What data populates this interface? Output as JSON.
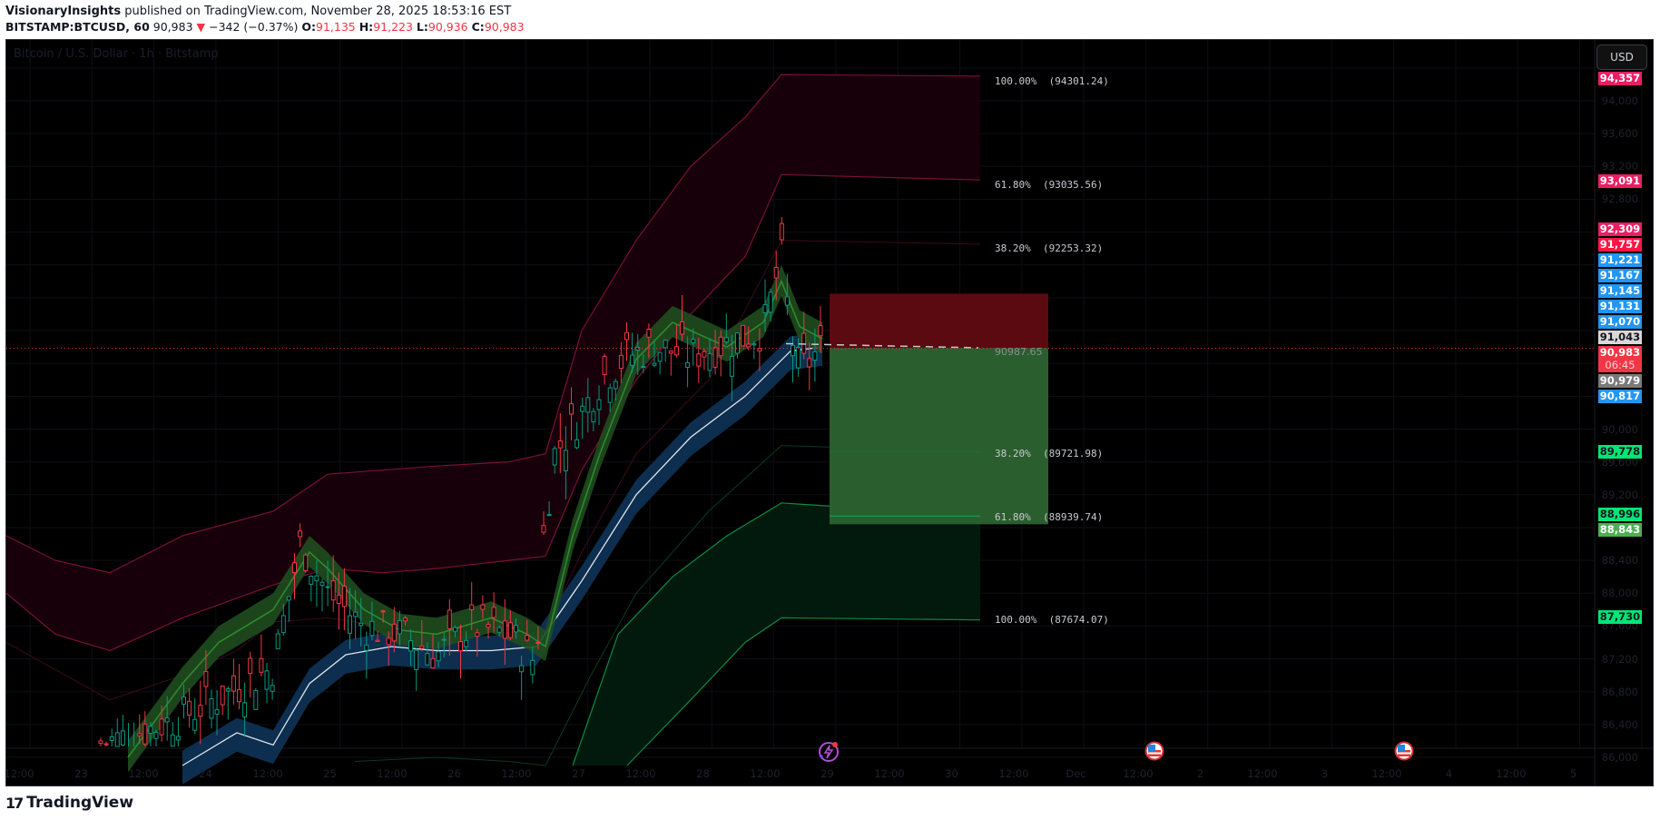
{
  "header": {
    "author": "VisionaryInsights",
    "published_text": "published on TradingView.com, November 28, 2025 18:53:16 EST",
    "symbol": "BITSTAMP:BTCUSD, 60",
    "last_price": "90,983",
    "change_arrow": "▼",
    "change": "−342 (−0.37%)",
    "o_label": "O:",
    "o_value": "91,135",
    "h_label": "H:",
    "h_value": "91,223",
    "l_label": "L:",
    "l_value": "90,936",
    "c_label": "C:",
    "c_value": "90,983"
  },
  "chart": {
    "watermark": "Bitcoin / U.S. Dollar · 1h · Bitstamp",
    "currency_button": "USD",
    "entry_price_label": "90987.65",
    "price_ticks": [
      "94,000",
      "93,600",
      "93,200",
      "92,800",
      "90,000",
      "89,600",
      "89,200",
      "88,400",
      "88,000",
      "87,600",
      "87,200",
      "86,800",
      "86,400",
      "86,000"
    ],
    "price_labels": [
      {
        "value": "94,357",
        "color": "#e91e63",
        "text_color": "#ffffff"
      },
      {
        "value": "93,091",
        "color": "#e91e63",
        "text_color": "#ffffff"
      },
      {
        "value": "92,309",
        "color": "#e91e63",
        "text_color": "#ffffff"
      },
      {
        "value": "91,757",
        "color": "#ff1744",
        "text_color": "#ffffff"
      },
      {
        "value": "91,221",
        "color": "#2196f3",
        "text_color": "#ffffff"
      },
      {
        "value": "91,167",
        "color": "#2196f3",
        "text_color": "#ffffff"
      },
      {
        "value": "91,145",
        "color": "#2196f3",
        "text_color": "#ffffff"
      },
      {
        "value": "91,131",
        "color": "#2196f3",
        "text_color": "#ffffff"
      },
      {
        "value": "91,070",
        "color": "#2196f3",
        "text_color": "#ffffff"
      },
      {
        "value": "91,043",
        "color": "#d8d8d8",
        "text_color": "#131722"
      },
      {
        "value": "90,983",
        "color": "#f23645",
        "text_color": "#ffffff"
      },
      {
        "value": "06:45",
        "color": "#f23645",
        "text_color": "#ffd0d4"
      },
      {
        "value": "90,979",
        "color": "#7a7a7a",
        "text_color": "#ffffff"
      },
      {
        "value": "90,817",
        "color": "#2196f3",
        "text_color": "#ffffff"
      },
      {
        "value": "89,778",
        "color": "#00e676",
        "text_color": "#131722"
      },
      {
        "value": "88,996",
        "color": "#00e676",
        "text_color": "#131722"
      },
      {
        "value": "88,843",
        "color": "#4caf50",
        "text_color": "#ffffff"
      },
      {
        "value": "87,730",
        "color": "#00e676",
        "text_color": "#131722"
      }
    ],
    "time_ticks": [
      "12:00",
      "23",
      "12:00",
      "24",
      "12:00",
      "25",
      "12:00",
      "26",
      "12:00",
      "27",
      "12:00",
      "28",
      "12:00",
      "29",
      "12:00",
      "30",
      "12:00",
      "Dec",
      "12:00",
      "2",
      "12:00",
      "3",
      "12:00",
      "4",
      "12:00",
      "5"
    ],
    "fib_levels": [
      {
        "pct": "100.00%",
        "price": "(94301.24)"
      },
      {
        "pct": "61.80%",
        "price": "(93035.56)"
      },
      {
        "pct": "38.20%",
        "price": "(92253.32)"
      },
      {
        "pct": "38.20%",
        "price": "(89721.98)"
      },
      {
        "pct": "61.80%",
        "price": "(88939.74)"
      },
      {
        "pct": "100.00%",
        "price": "(87674.07)"
      }
    ],
    "events": [
      {
        "icon": "lightning-icon"
      },
      {
        "icon": "us-flag-icon"
      },
      {
        "icon": "us-flag-icon"
      }
    ],
    "colors": {
      "up": "#089981",
      "down": "#f23645",
      "band_upper": "#880e4f",
      "band_lower": "#00c853",
      "ema_fill": "#0d2e4e",
      "stop_box": "#5a0a10",
      "target_box": "#2b5e2e"
    }
  },
  "footer": {
    "brand": "TradingView",
    "brand_mark": "17"
  }
}
